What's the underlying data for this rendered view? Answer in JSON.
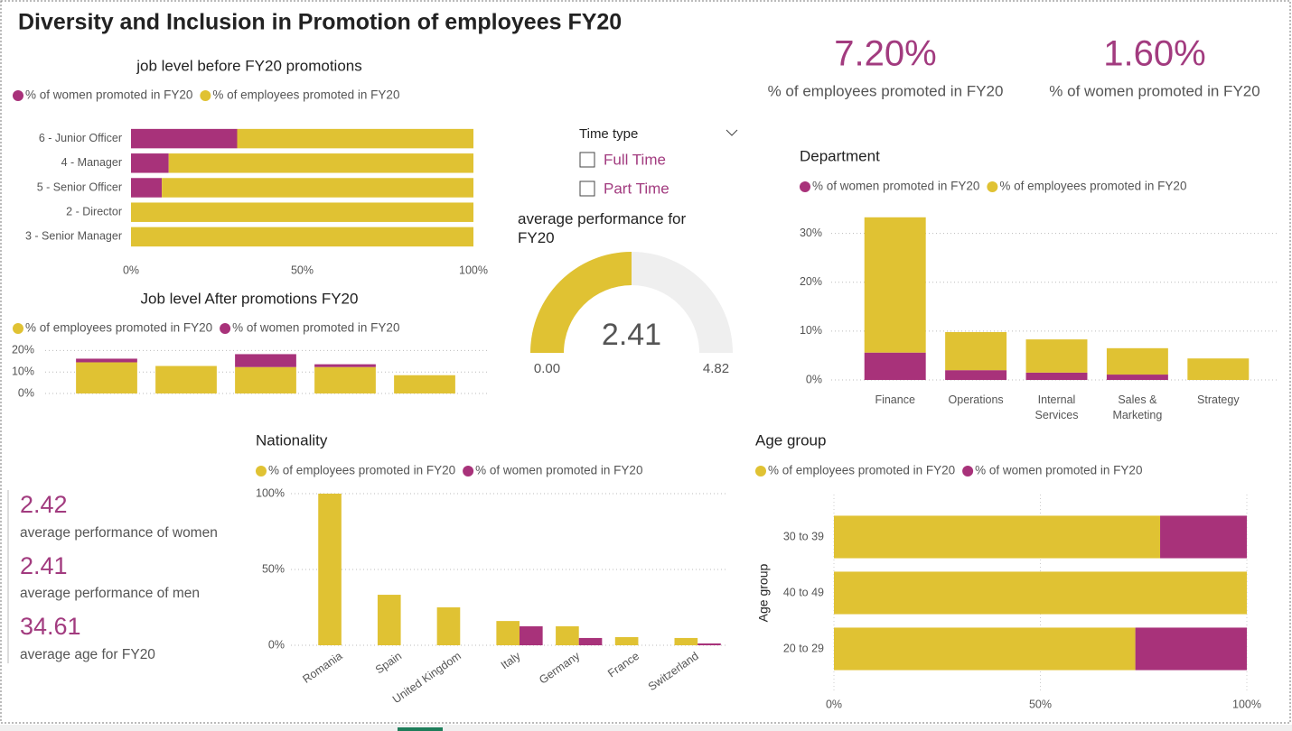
{
  "title": "Diversity and Inclusion in Promotion of employees FY20",
  "cards": [
    {
      "value": "7.20%",
      "label": "% of employees promoted in FY20"
    },
    {
      "value": "1.60%",
      "label": "% of women promoted in FY20"
    }
  ],
  "summary": [
    {
      "value": 2.42,
      "label": "average performance of women"
    },
    {
      "value": 2.41,
      "label": "average performance of men"
    },
    {
      "value": 34.61,
      "label": "average age for FY20"
    }
  ],
  "slicer": {
    "title": "Time type",
    "options": [
      "Full Time",
      "Part Time"
    ]
  },
  "chart_data": [
    {
      "type": "bar",
      "orientation": "horizontal",
      "stacked": true,
      "title": "job level before FY20 promotions",
      "categories": [
        "6 - Junior Officer",
        "4 - Manager",
        "5 - Senior Officer",
        "2 - Director",
        "3 - Senior Manager"
      ],
      "series": [
        {
          "name": "% of women promoted in FY20",
          "color": "#a8327a",
          "values": [
            31,
            11,
            9,
            0,
            0
          ]
        },
        {
          "name": "% of employees promoted in FY20",
          "color": "#e0c233",
          "values": [
            69,
            89,
            91,
            100,
            100
          ]
        }
      ],
      "xlim": [
        0,
        100
      ],
      "xticks": [
        {
          "value": 0,
          "label": "0%"
        },
        {
          "value": 50,
          "label": "50%"
        },
        {
          "value": 100,
          "label": "100%"
        }
      ],
      "grid": false
    },
    {
      "type": "bar",
      "orientation": "vertical",
      "stacked": true,
      "title": "Job level After promotions FY20",
      "categories": [
        null,
        null,
        null,
        null,
        null
      ],
      "series": [
        {
          "name": "% of employees promoted in FY20",
          "color": "#e0c233",
          "values": [
            14.5,
            12.8,
            12.3,
            12.3,
            8.5
          ]
        },
        {
          "name": "% of women promoted in FY20",
          "color": "#a8327a",
          "values": [
            1.7,
            0,
            6,
            1.3,
            0
          ]
        }
      ],
      "ylim": [
        0,
        21
      ],
      "yticks": [
        {
          "value": 0,
          "label": "0%"
        },
        {
          "value": 10,
          "label": "10%"
        },
        {
          "value": 20,
          "label": "20%"
        }
      ],
      "grid": true
    },
    {
      "type": "gauge",
      "title": "average performance for FY20",
      "value": 2.41,
      "min": {
        "value": 0,
        "label": "0.00"
      },
      "max": 4.82,
      "color": "#e0c233"
    },
    {
      "type": "bar",
      "orientation": "vertical",
      "stacked": true,
      "title": "Department",
      "categories": [
        "Finance",
        "Operations",
        "Internal Services",
        "Sales & Marketing",
        "Strategy"
      ],
      "series": [
        {
          "name": "% of women promoted in FY20",
          "color": "#a8327a",
          "values": [
            5.6,
            2.0,
            1.5,
            1.1,
            0
          ]
        },
        {
          "name": "% of employees promoted in FY20",
          "color": "#e0c233",
          "values": [
            27.7,
            7.8,
            6.8,
            5.4,
            4.4
          ]
        }
      ],
      "ylim": [
        0,
        34
      ],
      "yticks": [
        {
          "value": 0,
          "label": "0%"
        },
        {
          "value": 10,
          "label": "10%"
        },
        {
          "value": 20,
          "label": "20%"
        },
        {
          "value": 30,
          "label": "30%"
        }
      ],
      "grid": true
    },
    {
      "type": "bar",
      "orientation": "vertical",
      "stacked": false,
      "title": "Nationality",
      "categories": [
        "Romania",
        "Spain",
        "United Kingdom",
        "Italy",
        "Germany",
        "France",
        "Switzerland"
      ],
      "series": [
        {
          "name": "% of employees promoted in FY20",
          "color": "#e0c233",
          "values": [
            100,
            33.3,
            25,
            16,
            12.5,
            5.4,
            4.8
          ]
        },
        {
          "name": "% of women promoted in FY20",
          "color": "#a8327a",
          "values": [
            0,
            0,
            0,
            12.5,
            4.8,
            0,
            1.2
          ]
        }
      ],
      "ylim": [
        0,
        100
      ],
      "yticks": [
        {
          "value": 0,
          "label": "0%"
        },
        {
          "value": 50,
          "label": "50%"
        },
        {
          "value": 100,
          "label": "100%"
        }
      ],
      "grid": true
    },
    {
      "type": "bar",
      "orientation": "horizontal",
      "stacked": true,
      "title": "Age group",
      "ylabel": "Age group",
      "categories": [
        "30 to 39",
        "40 to 49",
        "20 to 29"
      ],
      "series": [
        {
          "name": "% of employees promoted in FY20",
          "color": "#e0c233",
          "values": [
            79,
            100,
            73
          ]
        },
        {
          "name": "% of women promoted in FY20",
          "color": "#a8327a",
          "values": [
            21,
            0,
            27
          ]
        }
      ],
      "xlim": [
        0,
        100
      ],
      "xticks": [
        {
          "value": 0,
          "label": "0%"
        },
        {
          "value": 50,
          "label": "50%"
        },
        {
          "value": 100,
          "label": "100%"
        }
      ],
      "grid": true
    }
  ]
}
